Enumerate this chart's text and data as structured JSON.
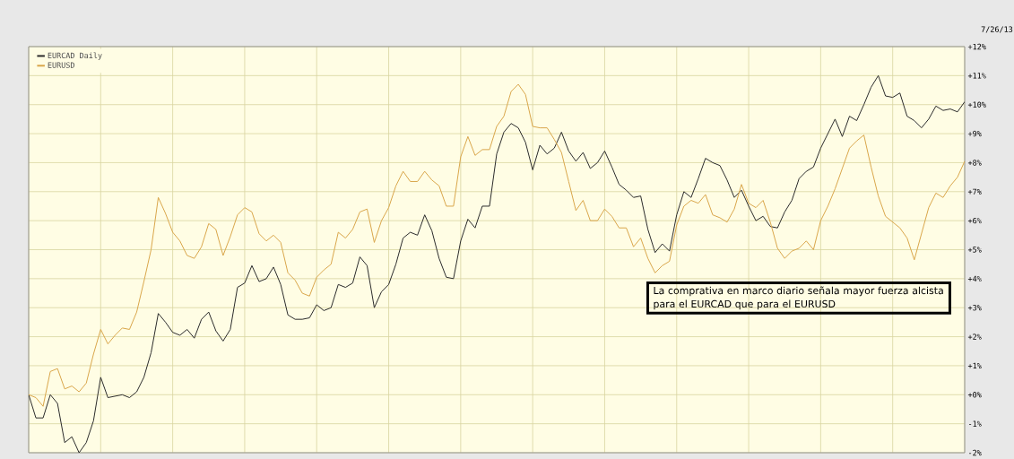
{
  "chart_data": {
    "type": "line",
    "categories": [
      null,
      null,
      null,
      null,
      null,
      null,
      null,
      null,
      null,
      null,
      null,
      null,
      null,
      null,
      null,
      null,
      null,
      null,
      null,
      null,
      null,
      null,
      null,
      null,
      null,
      null,
      null,
      null,
      null,
      null,
      null,
      null,
      null,
      null,
      null,
      null,
      null,
      null,
      null,
      null,
      null,
      null,
      null,
      null,
      null,
      null,
      null,
      null,
      null,
      null,
      null,
      null,
      null,
      null,
      null,
      null,
      null,
      null,
      null,
      null,
      null,
      null,
      null,
      null,
      null,
      null,
      null,
      null,
      null,
      null,
      null,
      null,
      null,
      null,
      null,
      null,
      null,
      null,
      null,
      null,
      null,
      null,
      null,
      null,
      null,
      null,
      null,
      null,
      null,
      null,
      null,
      null,
      null,
      null,
      null,
      null,
      null,
      null,
      null,
      null,
      null,
      null,
      null,
      null,
      null,
      null,
      null,
      null,
      null,
      null,
      null,
      null,
      null,
      null,
      null,
      null,
      null,
      null,
      null,
      null,
      null,
      null,
      null,
      null,
      null,
      null,
      null,
      null,
      null,
      null,
      null
    ],
    "series": [
      {
        "name": "EURCAD Daily",
        "color": "#2b2b2b",
        "values": [
          0.0,
          -0.8,
          -0.8,
          0.0,
          -0.3,
          -1.65,
          -1.45,
          -2.0,
          -1.65,
          -0.9,
          0.6,
          -0.1,
          -0.05,
          0.0,
          -0.1,
          0.1,
          0.6,
          1.45,
          2.8,
          2.5,
          2.15,
          2.05,
          2.25,
          1.95,
          2.6,
          2.85,
          2.2,
          1.85,
          2.25,
          3.7,
          3.85,
          4.45,
          3.9,
          4.0,
          4.4,
          3.8,
          2.75,
          2.6,
          2.6,
          2.65,
          3.1,
          2.9,
          3.0,
          3.8,
          3.7,
          3.85,
          4.75,
          4.45,
          3.0,
          3.55,
          3.8,
          4.5,
          5.4,
          5.6,
          5.5,
          6.2,
          5.65,
          4.7,
          4.05,
          4.0,
          5.3,
          6.05,
          5.75,
          6.5,
          6.5,
          8.3,
          9.05,
          9.35,
          9.2,
          8.7,
          7.75,
          8.6,
          8.3,
          8.5,
          9.05,
          8.4,
          8.05,
          8.35,
          7.8,
          8.0,
          8.4,
          7.85,
          7.25,
          7.05,
          6.8,
          6.85,
          5.7,
          4.9,
          5.2,
          4.95,
          6.2,
          7.0,
          6.8,
          7.45,
          8.15,
          8.0,
          7.9,
          7.4,
          6.8,
          7.05,
          6.5,
          6.0,
          6.15,
          5.8,
          5.75,
          6.3,
          6.7,
          7.45,
          7.7,
          7.85,
          8.5,
          9.0,
          9.5,
          8.9,
          9.6,
          9.45,
          10.0,
          10.6,
          11.0,
          10.3,
          10.25,
          10.4,
          9.6,
          9.45,
          9.2,
          9.5,
          9.95,
          9.8,
          9.85,
          9.75,
          10.1
        ]
      },
      {
        "name": "EURUSD",
        "color": "#d9a64a",
        "values": [
          0.0,
          -0.1,
          -0.4,
          0.8,
          0.9,
          0.2,
          0.3,
          0.1,
          0.4,
          1.4,
          2.25,
          1.75,
          2.05,
          2.3,
          2.25,
          2.85,
          3.9,
          5.0,
          6.8,
          6.25,
          5.6,
          5.3,
          4.8,
          4.7,
          5.1,
          5.9,
          5.7,
          4.8,
          5.45,
          6.2,
          6.45,
          6.3,
          5.55,
          5.3,
          5.5,
          5.25,
          4.2,
          3.95,
          3.5,
          3.4,
          4.05,
          4.3,
          4.5,
          5.6,
          5.4,
          5.7,
          6.3,
          6.4,
          5.25,
          6.0,
          6.45,
          7.2,
          7.7,
          7.35,
          7.35,
          7.7,
          7.4,
          7.2,
          6.5,
          6.5,
          8.2,
          8.9,
          8.25,
          8.45,
          8.45,
          9.25,
          9.6,
          10.45,
          10.7,
          10.35,
          9.25,
          9.2,
          9.2,
          8.8,
          8.35,
          7.35,
          6.35,
          6.7,
          6.0,
          6.0,
          6.4,
          6.15,
          5.75,
          5.75,
          5.1,
          5.4,
          4.7,
          4.2,
          4.45,
          4.6,
          5.85,
          6.5,
          6.7,
          6.6,
          6.9,
          6.2,
          6.1,
          5.95,
          6.4,
          7.25,
          6.6,
          6.45,
          6.7,
          5.95,
          5.05,
          4.7,
          4.95,
          5.05,
          5.3,
          5.0,
          6.0,
          6.5,
          7.1,
          7.8,
          8.5,
          8.75,
          8.95,
          7.85,
          6.85,
          6.15,
          5.95,
          5.75,
          5.4,
          4.65,
          5.55,
          6.45,
          6.95,
          6.8,
          7.2,
          7.5,
          8.05
        ]
      }
    ],
    "ylim": [
      -2,
      12
    ],
    "yticks": [
      {
        "value": -2,
        "label": "-2%"
      },
      {
        "value": -1,
        "label": "-1%"
      },
      {
        "value": 0,
        "label": "+0%"
      },
      {
        "value": 1,
        "label": "+1%"
      },
      {
        "value": 2,
        "label": "+2%"
      },
      {
        "value": 3,
        "label": "+3%"
      },
      {
        "value": 4,
        "label": "+4%"
      },
      {
        "value": 5,
        "label": "+5%"
      },
      {
        "value": 6,
        "label": "+6%"
      },
      {
        "value": 7,
        "label": "+7%"
      },
      {
        "value": 8,
        "label": "+8%"
      },
      {
        "value": 9,
        "label": "+9%"
      },
      {
        "value": 10,
        "label": "+10%"
      },
      {
        "value": 11,
        "label": "+11%"
      },
      {
        "value": 12,
        "label": "+12%"
      }
    ],
    "grid": true,
    "legend": "top left",
    "tick_labels": "y",
    "marker": "none",
    "annotations": [
      "7/26/13",
      "La comprativa en marco diario señala mayor fuerza alcista para el EURCAD que para el EURUSD"
    ]
  }
}
